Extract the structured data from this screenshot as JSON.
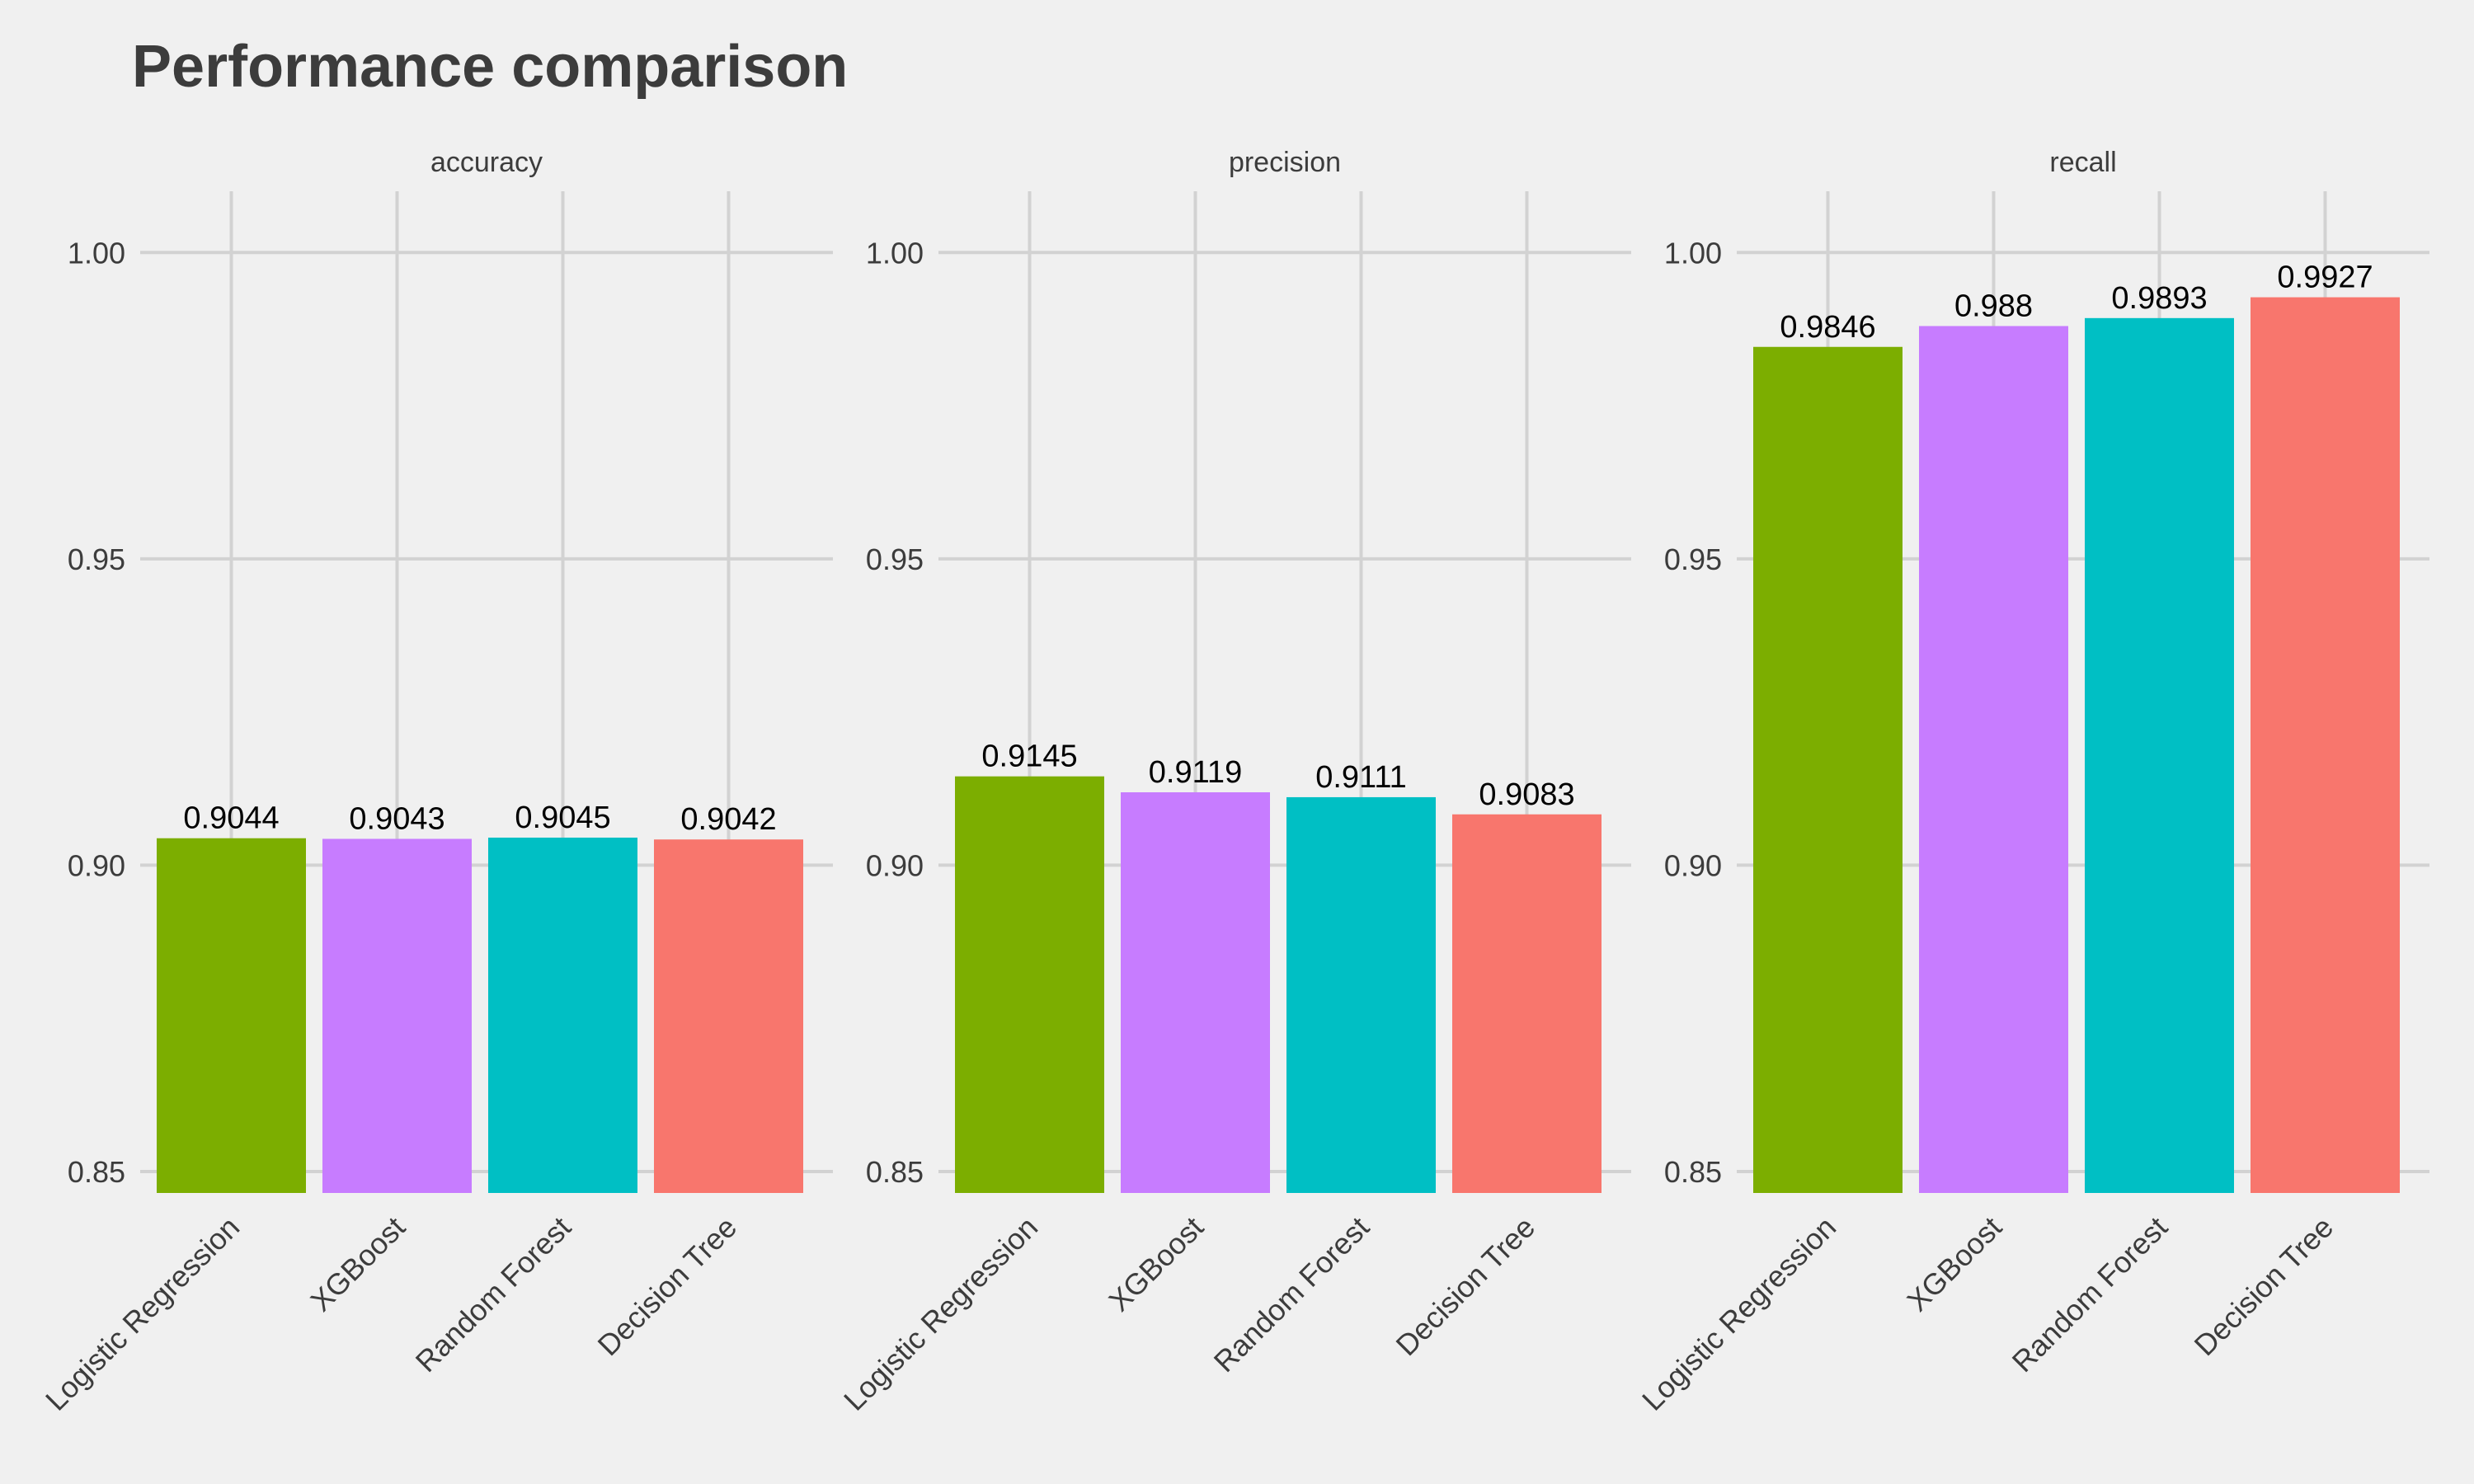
{
  "title": "Performance comparison",
  "chart_data": {
    "type": "bar",
    "title": "Performance comparison",
    "categories": [
      "Logistic Regression",
      "XGBoost",
      "Random Forest",
      "Decision Tree"
    ],
    "colors": [
      "#7cae00",
      "#c77cff",
      "#00bfc4",
      "#f8766d"
    ],
    "ylim": [
      0.8465,
      1.01
    ],
    "yticks": [
      0.85,
      0.9,
      0.95,
      1.0
    ],
    "ytick_labels": [
      "0.85",
      "0.90",
      "0.95",
      "1.00"
    ],
    "grid": true,
    "legend": "none",
    "facets": [
      {
        "name": "accuracy",
        "values": [
          0.9044,
          0.9043,
          0.9045,
          0.9042
        ],
        "labels": [
          "0.9044",
          "0.9043",
          "0.9045",
          "0.9042"
        ]
      },
      {
        "name": "precision",
        "values": [
          0.9145,
          0.9119,
          0.9111,
          0.9083
        ],
        "labels": [
          "0.9145",
          "0.9119",
          "0.9111",
          "0.9083"
        ]
      },
      {
        "name": "recall",
        "values": [
          0.9846,
          0.988,
          0.9893,
          0.9927
        ],
        "labels": [
          "0.9846",
          "0.988",
          "0.9893",
          "0.9927"
        ]
      }
    ]
  }
}
